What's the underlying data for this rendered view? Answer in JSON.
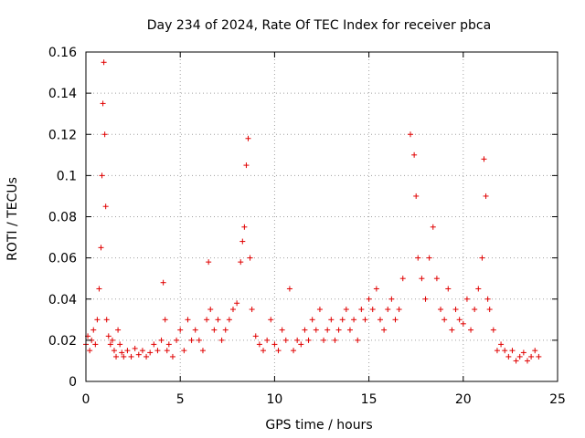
{
  "chart_data": {
    "type": "scatter",
    "title": "Day 234 of 2024, Rate Of TEC Index for receiver pbca",
    "xlabel": "GPS time / hours",
    "ylabel": "ROTI / TECUs",
    "xlim": [
      0,
      25
    ],
    "ylim": [
      0,
      0.16
    ],
    "x_ticks": [
      "0",
      "5",
      "10",
      "15",
      "20",
      "25"
    ],
    "y_ticks": [
      "0",
      "0.02",
      "0.04",
      "0.06",
      "0.08",
      "0.1",
      "0.12",
      "0.14",
      "0.16"
    ],
    "grid": true,
    "marker": "+",
    "color": "#ff0000",
    "series": [
      {
        "x": [
          0.0,
          0.1,
          0.2,
          0.3,
          0.4,
          0.5,
          0.6,
          0.7,
          0.8,
          0.85,
          0.9,
          0.95,
          1.0,
          1.05,
          1.1,
          1.2,
          1.3,
          1.4,
          1.5,
          1.6,
          1.7,
          1.8,
          1.9,
          2.0,
          2.2,
          2.4,
          2.6,
          2.8,
          3.0,
          3.2,
          3.4,
          3.6,
          3.8,
          4.0,
          4.1,
          4.2,
          4.3,
          4.4,
          4.6,
          4.8,
          5.0,
          5.2,
          5.4,
          5.6,
          5.8,
          6.0,
          6.2,
          6.4,
          6.5,
          6.6,
          6.8,
          7.0,
          7.2,
          7.4,
          7.6,
          7.8,
          8.0,
          8.2,
          8.3,
          8.4,
          8.5,
          8.6,
          8.7,
          8.8,
          9.0,
          9.2,
          9.4,
          9.6,
          9.8,
          10.0,
          10.2,
          10.4,
          10.6,
          10.8,
          11.0,
          11.2,
          11.4,
          11.6,
          11.8,
          12.0,
          12.2,
          12.4,
          12.6,
          12.8,
          13.0,
          13.2,
          13.4,
          13.6,
          13.8,
          14.0,
          14.2,
          14.4,
          14.6,
          14.8,
          15.0,
          15.2,
          15.4,
          15.6,
          15.8,
          16.0,
          16.2,
          16.4,
          16.6,
          16.8,
          17.2,
          17.4,
          17.5,
          17.6,
          17.8,
          18.0,
          18.2,
          18.4,
          18.6,
          18.8,
          19.0,
          19.2,
          19.4,
          19.6,
          19.8,
          20.0,
          20.2,
          20.4,
          20.6,
          20.8,
          21.0,
          21.1,
          21.2,
          21.3,
          21.4,
          21.6,
          21.8,
          22.0,
          22.2,
          22.4,
          22.6,
          22.8,
          23.0,
          23.2,
          23.4,
          23.6,
          23.8,
          24.0
        ],
        "y": [
          0.018,
          0.022,
          0.015,
          0.02,
          0.025,
          0.018,
          0.03,
          0.045,
          0.065,
          0.1,
          0.135,
          0.155,
          0.12,
          0.085,
          0.03,
          0.022,
          0.018,
          0.02,
          0.015,
          0.012,
          0.025,
          0.018,
          0.014,
          0.012,
          0.015,
          0.012,
          0.016,
          0.013,
          0.015,
          0.012,
          0.014,
          0.018,
          0.015,
          0.02,
          0.048,
          0.03,
          0.015,
          0.018,
          0.012,
          0.02,
          0.025,
          0.015,
          0.03,
          0.02,
          0.025,
          0.02,
          0.015,
          0.03,
          0.058,
          0.035,
          0.025,
          0.03,
          0.02,
          0.025,
          0.03,
          0.035,
          0.038,
          0.058,
          0.068,
          0.075,
          0.105,
          0.118,
          0.06,
          0.035,
          0.022,
          0.018,
          0.015,
          0.02,
          0.03,
          0.018,
          0.015,
          0.025,
          0.02,
          0.045,
          0.015,
          0.02,
          0.018,
          0.025,
          0.02,
          0.03,
          0.025,
          0.035,
          0.02,
          0.025,
          0.03,
          0.02,
          0.025,
          0.03,
          0.035,
          0.025,
          0.03,
          0.02,
          0.035,
          0.03,
          0.04,
          0.035,
          0.045,
          0.03,
          0.025,
          0.035,
          0.04,
          0.03,
          0.035,
          0.05,
          0.12,
          0.11,
          0.09,
          0.06,
          0.05,
          0.04,
          0.06,
          0.075,
          0.05,
          0.035,
          0.03,
          0.045,
          0.025,
          0.035,
          0.03,
          0.028,
          0.04,
          0.025,
          0.035,
          0.045,
          0.06,
          0.108,
          0.09,
          0.04,
          0.035,
          0.025,
          0.015,
          0.018,
          0.015,
          0.012,
          0.015,
          0.01,
          0.012,
          0.014,
          0.01,
          0.012,
          0.015,
          0.012
        ]
      }
    ]
  }
}
